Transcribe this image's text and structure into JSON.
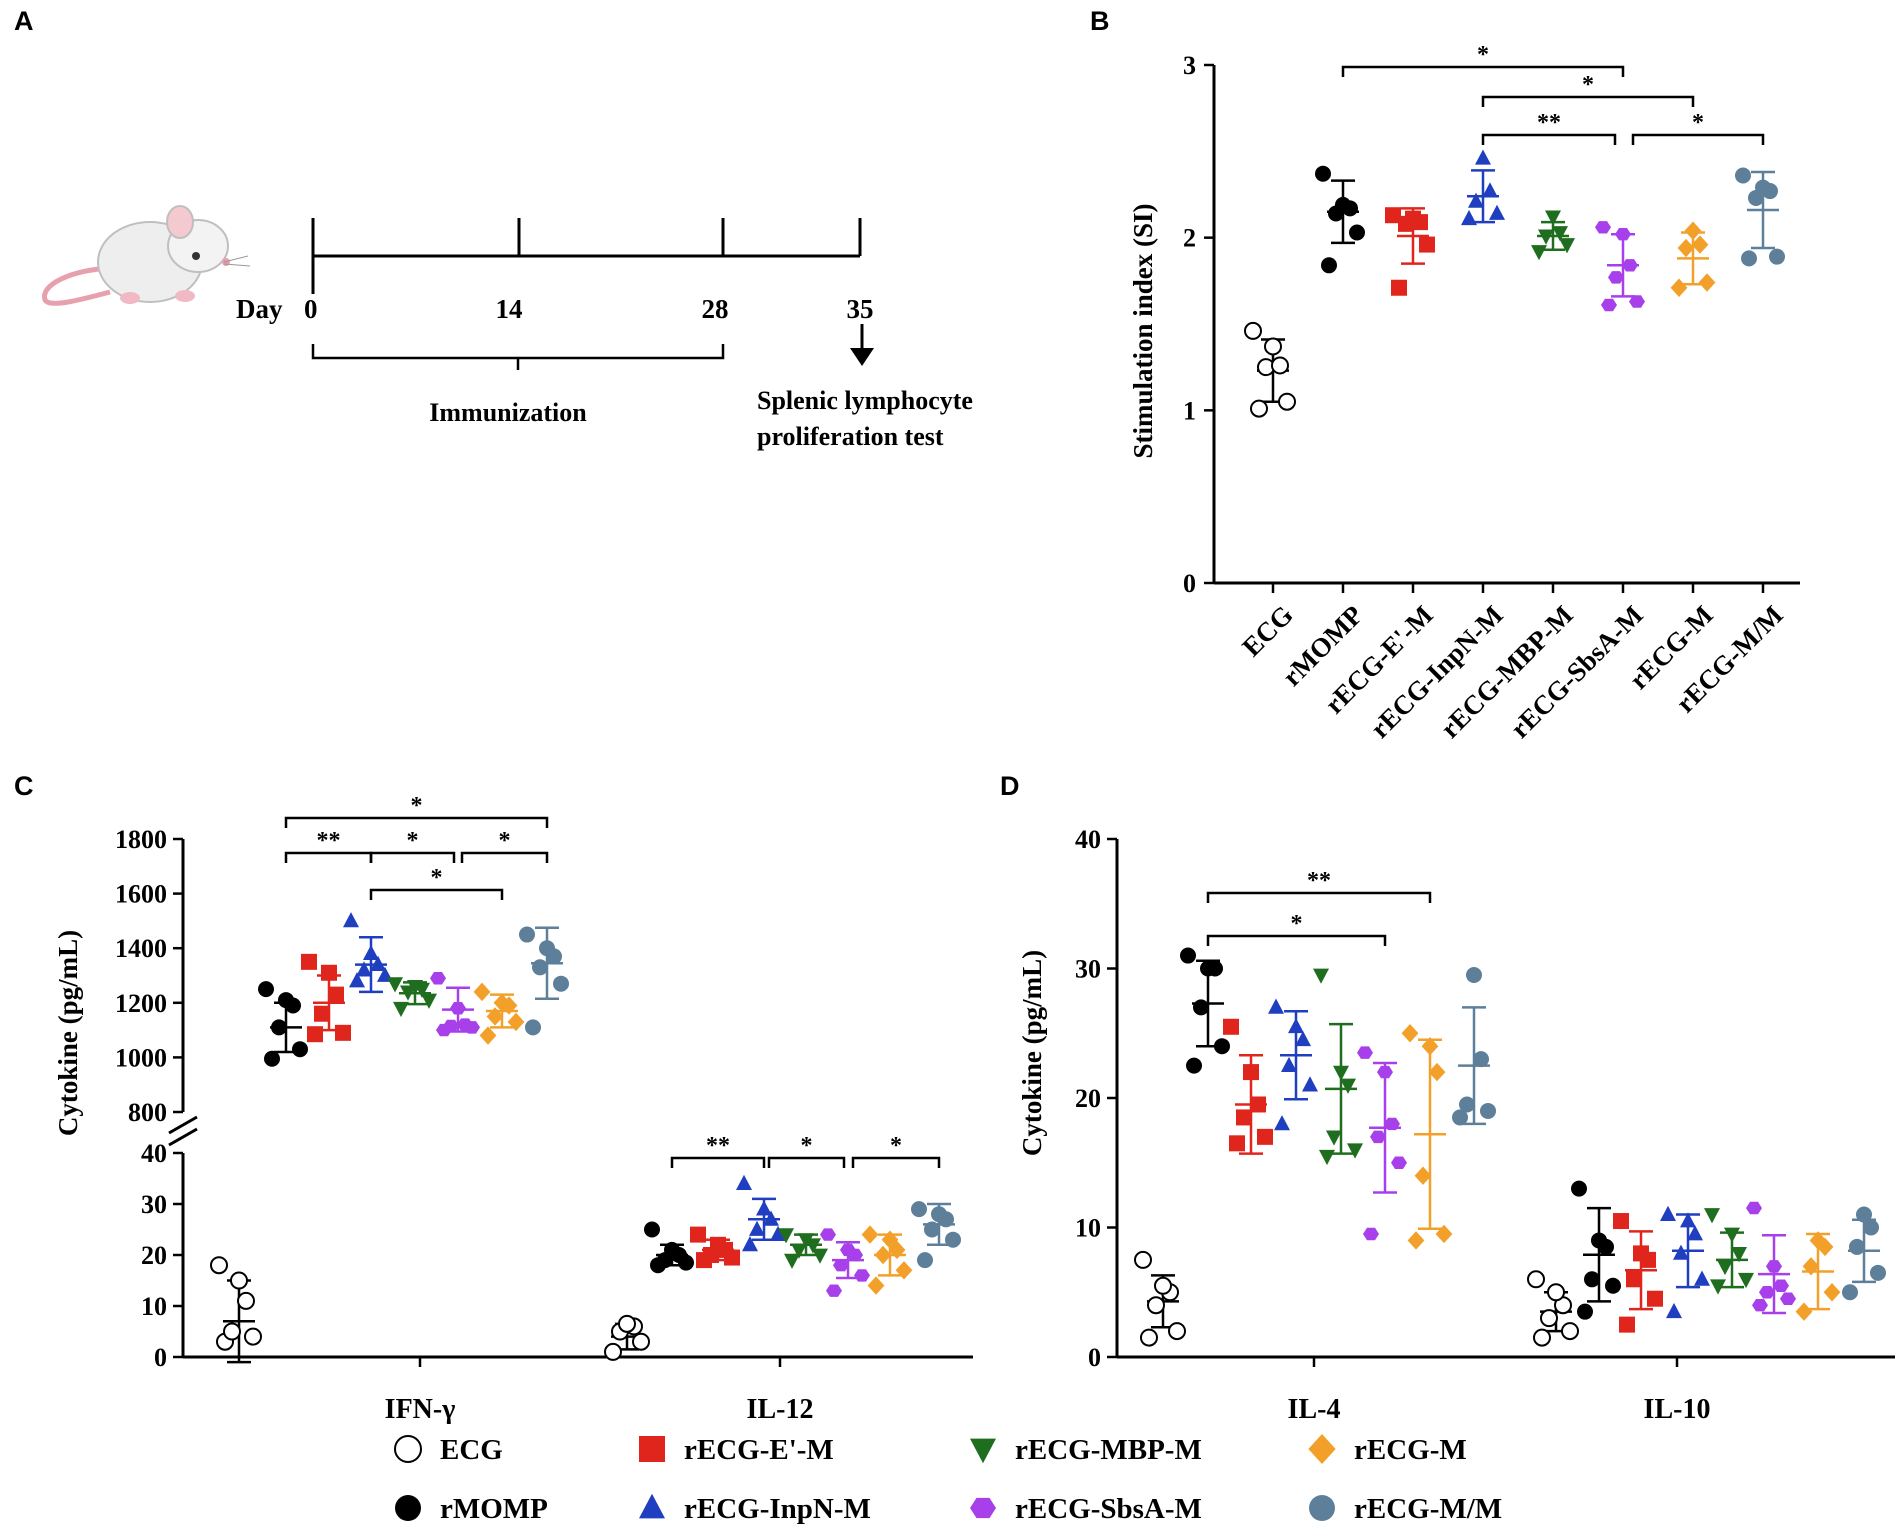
{
  "panels": {
    "a": "A",
    "b": "B",
    "c": "C",
    "d": "D"
  },
  "colors": {
    "ECG": "#ffffff",
    "rMOMP": "#000000",
    "rECG-E'-M": "#e0261c",
    "rECG-InpN-M": "#1f3fc0",
    "rECG-MBP-M": "#1f6e1f",
    "rECG-SbsA-M": "#a740ea",
    "rECG-M": "#f2a02a",
    "rECG-M/M": "#5d7f99"
  },
  "panel_a": {
    "day_label": "Day",
    "days": [
      "0",
      "14",
      "28",
      "35"
    ],
    "immunization_label": "Immunization",
    "test_label_line1": "Splenic lymphocyte",
    "test_label_line2": "proliferation test"
  },
  "legend": {
    "items": [
      {
        "name": "ECG",
        "marker": "circle-open"
      },
      {
        "name": "rECG-E'-M",
        "marker": "square"
      },
      {
        "name": "rECG-MBP-M",
        "marker": "triangle-down"
      },
      {
        "name": "rECG-M",
        "marker": "diamond"
      },
      {
        "name": "rMOMP",
        "marker": "circle"
      },
      {
        "name": "rECG-InpN-M",
        "marker": "triangle-up"
      },
      {
        "name": "rECG-SbsA-M",
        "marker": "hexagon"
      },
      {
        "name": "rECG-M/M",
        "marker": "circle"
      }
    ]
  },
  "chart_data": [
    {
      "id": "B",
      "type": "scatter",
      "ylabel": "Stimulation index (SI)",
      "ylim": [
        0,
        3
      ],
      "yticks": [
        "0",
        "1",
        "2",
        "3"
      ],
      "categories": [
        "ECG",
        "rMOMP",
        "rECG-E'-M",
        "rECG-InpN-M",
        "rECG-MBP-M",
        "rECG-SbsA-M",
        "rECG-M",
        "rECG-M/M"
      ],
      "series": [
        {
          "name": "ECG",
          "points": [
            1.01,
            1.05,
            1.25,
            1.26,
            1.37,
            1.46
          ],
          "mean": 1.23,
          "sd": 0.18
        },
        {
          "name": "rMOMP",
          "points": [
            1.84,
            2.03,
            2.14,
            2.17,
            2.19,
            2.37
          ],
          "mean": 2.15,
          "sd": 0.18
        },
        {
          "name": "rECG-E'-M",
          "points": [
            1.71,
            1.96,
            2.08,
            2.09,
            2.11,
            2.13
          ],
          "mean": 2.01,
          "sd": 0.16
        },
        {
          "name": "rECG-InpN-M",
          "points": [
            2.11,
            2.14,
            2.21,
            2.27,
            2.46
          ],
          "mean": 2.24,
          "sd": 0.15
        },
        {
          "name": "rECG-MBP-M",
          "points": [
            1.92,
            1.96,
            2.01,
            2.03,
            2.12
          ],
          "mean": 2.01,
          "sd": 0.08
        },
        {
          "name": "rECG-SbsA-M",
          "points": [
            1.61,
            1.63,
            1.77,
            1.84,
            2.02,
            2.06
          ],
          "mean": 1.84,
          "sd": 0.18
        },
        {
          "name": "rECG-M",
          "points": [
            1.71,
            1.74,
            1.94,
            1.96,
            2.04
          ],
          "mean": 1.88,
          "sd": 0.15
        },
        {
          "name": "rECG-M/M",
          "points": [
            1.88,
            1.89,
            2.23,
            2.27,
            2.29,
            2.36
          ],
          "mean": 2.16,
          "sd": 0.22
        }
      ],
      "significance": [
        {
          "from": "rMOMP",
          "to": "rECG-SbsA-M",
          "label": "*",
          "level": 3
        },
        {
          "from": "rECG-InpN-M",
          "to": "rECG-M",
          "label": "*",
          "level": 2
        },
        {
          "from": "rECG-InpN-M",
          "to": "rECG-SbsA-M",
          "label": "**",
          "level": 1
        },
        {
          "from": "rECG-SbsA-M",
          "to": "rECG-M/M",
          "label": "*",
          "level": 1
        }
      ]
    },
    {
      "id": "C",
      "type": "scatter",
      "ylabel": "Cytokine (pg/mL)",
      "axis_break": true,
      "ylim_lower": [
        0,
        40
      ],
      "ylim_upper": [
        800,
        1800
      ],
      "yticks_lower": [
        "0",
        "10",
        "20",
        "30",
        "40"
      ],
      "yticks_upper": [
        "800",
        "1000",
        "1200",
        "1400",
        "1600",
        "1800"
      ],
      "groups": [
        {
          "label": "IFN-γ",
          "segment": "upper",
          "ecg": {
            "points": [
              3,
              4,
              5,
              11,
              15,
              18
            ],
            "mean": 7,
            "sd": 8
          },
          "series": [
            {
              "name": "rMOMP",
              "points": [
                995,
                1030,
                1110,
                1190,
                1210,
                1250
              ],
              "mean": 1110,
              "sd": 90
            },
            {
              "name": "rECG-E'-M",
              "points": [
                1085,
                1090,
                1160,
                1230,
                1310,
                1350
              ],
              "mean": 1200,
              "sd": 100
            },
            {
              "name": "rECG-InpN-M",
              "points": [
                1280,
                1300,
                1320,
                1340,
                1380,
                1500
              ],
              "mean": 1340,
              "sd": 100
            },
            {
              "name": "rECG-MBP-M",
              "points": [
                1180,
                1210,
                1240,
                1250,
                1260,
                1270
              ],
              "mean": 1235,
              "sd": 40
            },
            {
              "name": "rECG-SbsA-M",
              "points": [
                1100,
                1110,
                1115,
                1120,
                1180,
                1290
              ],
              "mean": 1175,
              "sd": 80
            },
            {
              "name": "rECG-M",
              "points": [
                1080,
                1130,
                1150,
                1190,
                1200,
                1240
              ],
              "mean": 1170,
              "sd": 60
            },
            {
              "name": "rECG-M/M",
              "points": [
                1110,
                1270,
                1330,
                1370,
                1400,
                1450
              ],
              "mean": 1345,
              "sd": 130
            }
          ]
        },
        {
          "label": "IL-12",
          "segment": "lower",
          "ecg": {
            "points": [
              1,
              3,
              5,
              6,
              6.5
            ],
            "mean": 4,
            "sd": 2.5
          },
          "series": [
            {
              "name": "rMOMP",
              "points": [
                18,
                18.5,
                19,
                20,
                21,
                25
              ],
              "mean": 20,
              "sd": 2
            },
            {
              "name": "rECG-E'-M",
              "points": [
                19,
                19.5,
                20,
                21,
                22,
                24
              ],
              "mean": 21,
              "sd": 2
            },
            {
              "name": "rECG-InpN-M",
              "points": [
                22,
                24,
                25,
                27,
                29,
                34
              ],
              "mean": 27,
              "sd": 4
            },
            {
              "name": "rECG-MBP-M",
              "points": [
                19,
                20,
                21,
                22,
                23,
                24
              ],
              "mean": 22,
              "sd": 2
            },
            {
              "name": "rECG-SbsA-M",
              "points": [
                13,
                16,
                18,
                20,
                21,
                24
              ],
              "mean": 19,
              "sd": 3.5
            },
            {
              "name": "rECG-M",
              "points": [
                14,
                17,
                20,
                21,
                23,
                24
              ],
              "mean": 20,
              "sd": 4
            },
            {
              "name": "rECG-M/M",
              "points": [
                19,
                23,
                25,
                27,
                28,
                29
              ],
              "mean": 26,
              "sd": 4
            }
          ]
        }
      ],
      "significance": [
        {
          "group": "IFN-γ",
          "from": "rMOMP",
          "to": "rECG-M/M",
          "label": "*"
        },
        {
          "group": "IFN-γ",
          "from": "rMOMP",
          "to": "rECG-InpN-M",
          "label": "**"
        },
        {
          "group": "IFN-γ",
          "from": "rECG-InpN-M",
          "to": "rECG-SbsA-M",
          "label": "*"
        },
        {
          "group": "IFN-γ",
          "from": "rECG-SbsA-M",
          "to": "rECG-M/M",
          "label": "*"
        },
        {
          "group": "IFN-γ",
          "from": "rECG-InpN-M",
          "to": "rECG-M",
          "label": "*"
        },
        {
          "group": "IL-12",
          "from": "rMOMP",
          "to": "rECG-InpN-M",
          "label": "**"
        },
        {
          "group": "IL-12",
          "from": "rECG-InpN-M",
          "to": "rECG-SbsA-M",
          "label": "*"
        },
        {
          "group": "IL-12",
          "from": "rECG-SbsA-M",
          "to": "rECG-M/M",
          "label": "*"
        }
      ]
    },
    {
      "id": "D",
      "type": "scatter",
      "ylabel": "Cytokine (pg/mL)",
      "ylim": [
        0,
        40
      ],
      "yticks": [
        "0",
        "10",
        "20",
        "30",
        "40"
      ],
      "groups": [
        {
          "label": "IL-4",
          "ecg": {
            "points": [
              1.5,
              2,
              4,
              5,
              5.5,
              7.5
            ],
            "mean": 4.3,
            "sd": 2
          },
          "series": [
            {
              "name": "rMOMP",
              "points": [
                22.5,
                24,
                27,
                30,
                30,
                31
              ],
              "mean": 27.3,
              "sd": 3.3
            },
            {
              "name": "rECG-E'-M",
              "points": [
                16.5,
                17,
                18.5,
                19.5,
                22,
                25.5
              ],
              "mean": 19.5,
              "sd": 3.8
            },
            {
              "name": "rECG-InpN-M",
              "points": [
                18,
                21,
                22.5,
                24.5,
                25.5,
                27
              ],
              "mean": 23.3,
              "sd": 3.4
            },
            {
              "name": "rECG-MBP-M",
              "points": [
                15.5,
                16,
                17,
                21,
                22,
                29.5
              ],
              "mean": 20.7,
              "sd": 5
            },
            {
              "name": "rECG-SbsA-M",
              "points": [
                9.5,
                15,
                17,
                18,
                22,
                23.5
              ],
              "mean": 17.7,
              "sd": 5
            },
            {
              "name": "rECG-M",
              "points": [
                9,
                9.5,
                14,
                22,
                24,
                25
              ],
              "mean": 17.2,
              "sd": 7.3
            },
            {
              "name": "rECG-M/M",
              "points": [
                18.5,
                19,
                19.5,
                23,
                29.5
              ],
              "mean": 22.5,
              "sd": 4.5
            }
          ]
        },
        {
          "label": "IL-10",
          "ecg": {
            "points": [
              1.5,
              2,
              3,
              4,
              5,
              6
            ],
            "mean": 3.5,
            "sd": 1.5
          },
          "series": [
            {
              "name": "rMOMP",
              "points": [
                3.5,
                5.5,
                6,
                8.5,
                9,
                13
              ],
              "mean": 7.9,
              "sd": 3.6
            },
            {
              "name": "rECG-E'-M",
              "points": [
                2.5,
                4.5,
                6,
                7.5,
                8,
                10.5
              ],
              "mean": 6.7,
              "sd": 3
            },
            {
              "name": "rECG-InpN-M",
              "points": [
                3.5,
                6,
                8,
                9.5,
                10.5,
                11
              ],
              "mean": 8.2,
              "sd": 2.8
            },
            {
              "name": "rECG-MBP-M",
              "points": [
                5.5,
                6,
                7,
                8,
                9.5,
                11
              ],
              "mean": 7.5,
              "sd": 2.1
            },
            {
              "name": "rECG-SbsA-M",
              "points": [
                4,
                4.5,
                5,
                5.5,
                7,
                11.5
              ],
              "mean": 6.4,
              "sd": 3
            },
            {
              "name": "rECG-M",
              "points": [
                3.5,
                5,
                7,
                8.5,
                9
              ],
              "mean": 6.6,
              "sd": 2.9
            },
            {
              "name": "rECG-M/M",
              "points": [
                5,
                6.5,
                8.5,
                10,
                11
              ],
              "mean": 8.2,
              "sd": 2.4
            }
          ]
        }
      ],
      "significance": [
        {
          "group": "IL-4",
          "from": "rMOMP",
          "to": "rECG-M",
          "label": "**"
        },
        {
          "group": "IL-4",
          "from": "rMOMP",
          "to": "rECG-SbsA-M",
          "label": "*"
        }
      ]
    }
  ]
}
